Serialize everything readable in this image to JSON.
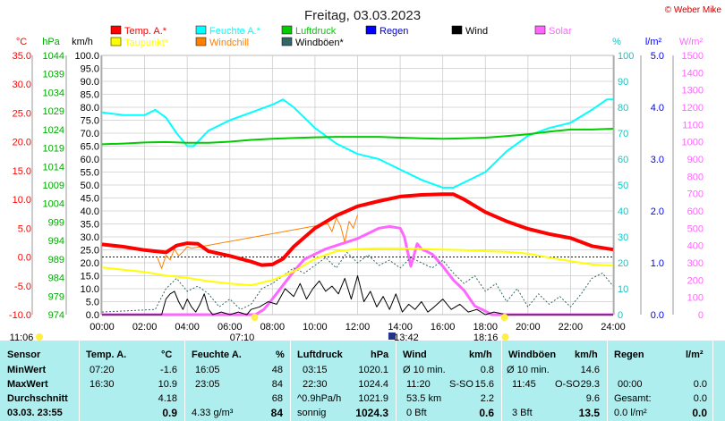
{
  "copyright": "© Weber Mike",
  "chart_data": {
    "type": "line",
    "title": "Freitag, 03.03.2023",
    "units": {
      "temp": "°C",
      "pressure": "hPa",
      "wind": "km/h",
      "humidity": "%",
      "rain": "l/m²",
      "solar": "W/m²"
    },
    "legend": [
      {
        "name": "Temp. A.*",
        "color": "#ff0000"
      },
      {
        "name": "Feuchte A.*",
        "color": "#00ffff"
      },
      {
        "name": "Luftdruck",
        "color": "#00cc00"
      },
      {
        "name": "Regen",
        "color": "#0000ff"
      },
      {
        "name": "Wind",
        "color": "#000000"
      },
      {
        "name": "Solar",
        "color": "#ff66ff"
      },
      {
        "name": "Taupunkt*",
        "color": "#ffff00"
      },
      {
        "name": "Windchill",
        "color": "#ff8000"
      },
      {
        "name": "Windböen*",
        "color": "#336666"
      }
    ],
    "axes": {
      "temp": {
        "ticks": [
          "35.0",
          "30.0",
          "25.0",
          "20.0",
          "15.0",
          "10.0",
          "5.0",
          "0.0",
          "-5.0",
          "-10.0"
        ],
        "range": [
          -10,
          35
        ],
        "color": "#ff0000"
      },
      "pressure": {
        "ticks": [
          "1044",
          "1039",
          "1034",
          "1029",
          "1024",
          "1019",
          "1014",
          "1009",
          "1004",
          "999",
          "994",
          "989",
          "984",
          "979",
          "974"
        ],
        "range": [
          974,
          1044
        ],
        "color": "#00aa00"
      },
      "wind": {
        "ticks": [
          "100.0",
          "95.0",
          "90.0",
          "85.0",
          "80.0",
          "75.0",
          "70.0",
          "65.0",
          "60.0",
          "55.0",
          "50.0",
          "45.0",
          "40.0",
          "35.0",
          "30.0",
          "25.0",
          "20.0",
          "15.0",
          "10.0",
          "5.0",
          "0.0"
        ],
        "range": [
          0,
          100
        ]
      },
      "humidity": {
        "ticks": [
          "100",
          "90",
          "80",
          "70",
          "60",
          "50",
          "40",
          "30",
          "20",
          "10",
          "0"
        ],
        "range": [
          0,
          100
        ],
        "color": "#00cccc"
      },
      "rain": {
        "ticks": [
          "5.0",
          "4.0",
          "3.0",
          "2.0",
          "1.0",
          "0.0"
        ],
        "range": [
          0,
          5
        ],
        "color": "#0000ff"
      },
      "solar": {
        "ticks": [
          "1500",
          "1400",
          "1300",
          "1200",
          "1100",
          "1000",
          "900",
          "800",
          "700",
          "600",
          "500",
          "400",
          "300",
          "200",
          "100",
          "0"
        ],
        "range": [
          0,
          1500
        ],
        "color": "#ff66ff"
      },
      "x": {
        "ticks": [
          "00:00",
          "02:00",
          "04:00",
          "06:00",
          "08:00",
          "10:00",
          "12:00",
          "14:00",
          "16:00",
          "18:00",
          "20:00",
          "22:00",
          "24:00"
        ],
        "range": [
          0,
          24
        ]
      }
    },
    "markers": {
      "moonrise": "11:06",
      "sunrise": "07:10",
      "moon": "13:42",
      "sunset": "18:16"
    },
    "series": [
      {
        "name": "Temp. A.*",
        "axis": "temp",
        "x": [
          0,
          1,
          2,
          3,
          3.5,
          4,
          4.5,
          5,
          6,
          7,
          7.5,
          8,
          8.5,
          9,
          10,
          11,
          12,
          13,
          14,
          15,
          16,
          16.5,
          17,
          18,
          19,
          20,
          21,
          22,
          23,
          24
        ],
        "values": [
          2.2,
          1.8,
          1.2,
          0.8,
          2.0,
          2.4,
          2.3,
          1.0,
          0.2,
          -0.8,
          -1.4,
          -1.3,
          -0.3,
          1.8,
          5.0,
          7.2,
          8.8,
          9.7,
          10.5,
          10.8,
          10.9,
          10.9,
          10.0,
          7.8,
          6.2,
          4.9,
          4.0,
          3.3,
          1.9,
          1.3
        ]
      },
      {
        "name": "Feuchte A.*",
        "axis": "humidity",
        "x": [
          0,
          1,
          2,
          2.5,
          3,
          3.5,
          4,
          4.3,
          5,
          6,
          7,
          8,
          8.5,
          9,
          10,
          11,
          12,
          13,
          14,
          15,
          16,
          16.5,
          17,
          18,
          19,
          20,
          21,
          22,
          23,
          23.7,
          24
        ],
        "values": [
          78,
          77,
          77,
          79,
          76,
          70,
          65,
          65,
          71,
          75,
          78,
          81,
          83,
          80,
          72,
          66,
          62,
          60,
          56,
          52,
          49,
          49,
          51,
          55,
          63,
          69,
          72,
          74,
          79,
          83,
          83
        ]
      },
      {
        "name": "Luftdruck",
        "axis": "pressure",
        "x": [
          0,
          1,
          2,
          3,
          4,
          5,
          6,
          7,
          8,
          9,
          10,
          11,
          12,
          13,
          14,
          15,
          16,
          17,
          18,
          19,
          20,
          21,
          22,
          23,
          24
        ],
        "values": [
          1020.0,
          1020.2,
          1020.5,
          1020.6,
          1020.4,
          1020.4,
          1020.7,
          1021.2,
          1021.5,
          1021.7,
          1021.9,
          1022.0,
          1022.0,
          1022.0,
          1021.8,
          1021.6,
          1021.5,
          1021.6,
          1021.8,
          1022.2,
          1022.7,
          1023.4,
          1024.0,
          1024.0,
          1024.2
        ]
      },
      {
        "name": "Taupunkt*",
        "axis": "temp",
        "x": [
          0,
          1,
          2,
          3,
          4,
          5,
          6,
          7,
          8,
          9,
          10,
          11,
          12,
          13,
          14,
          15,
          16,
          17,
          18,
          19,
          20,
          21,
          22,
          23,
          24
        ],
        "values": [
          -1.8,
          -2.2,
          -2.6,
          -3.2,
          -3.6,
          -4.2,
          -4.6,
          -4.9,
          -4.0,
          -2.5,
          -0.3,
          1.0,
          1.4,
          1.5,
          1.5,
          1.4,
          1.3,
          1.2,
          1.0,
          0.9,
          0.6,
          -0.1,
          -0.7,
          -1.3,
          -1.5
        ]
      },
      {
        "name": "Windchill",
        "axis": "temp",
        "x": [
          2.6,
          2.8,
          3.0,
          3.2,
          3.4,
          3.6,
          3.8,
          4.0,
          4.2,
          10.6,
          10.8,
          11.0,
          11.2,
          11.4,
          11.6,
          11.8,
          12.0
        ],
        "values": [
          -0.1,
          -2.0,
          0.3,
          -0.5,
          1.4,
          0.2,
          0.9,
          1.8,
          1.5,
          5.8,
          4.4,
          6.8,
          5.4,
          2.6,
          6.2,
          5.0,
          7.3
        ]
      },
      {
        "name": "Solar",
        "axis": "solar",
        "x": [
          0,
          7.2,
          7.6,
          8,
          8.5,
          9,
          9.5,
          10,
          10.5,
          11,
          11.5,
          12,
          12.5,
          13,
          13.5,
          14,
          14.2,
          14.5,
          14.8,
          15,
          15.5,
          16,
          16.5,
          17,
          17.5,
          18,
          18.3,
          24
        ],
        "values": [
          0,
          0,
          30,
          90,
          170,
          250,
          320,
          350,
          380,
          400,
          420,
          440,
          470,
          500,
          510,
          500,
          450,
          280,
          410,
          380,
          350,
          280,
          200,
          140,
          50,
          20,
          0,
          0
        ]
      },
      {
        "name": "Wind",
        "axis": "wind",
        "x": [
          0,
          2.8,
          3.0,
          3.2,
          3.4,
          3.6,
          3.8,
          4.0,
          4.2,
          4.4,
          4.6,
          4.8,
          5.0,
          5.2,
          5.6,
          6.0,
          6.4,
          6.8,
          7.0,
          7.4,
          7.8,
          8.2,
          8.6,
          9.0,
          9.3,
          9.6,
          9.9,
          10.2,
          10.5,
          10.8,
          11.1,
          11.4,
          11.7,
          12.0,
          12.3,
          12.6,
          12.9,
          13.2,
          13.5,
          13.8,
          14.1,
          14.4,
          14.7,
          15.0,
          15.3,
          15.6,
          16.0,
          16.4,
          16.8,
          17.2,
          17.6,
          18.0,
          18.4,
          19.0,
          20,
          21,
          22,
          23,
          24
        ],
        "values": [
          0,
          0,
          6,
          8,
          9,
          5,
          2,
          6,
          3,
          1,
          4,
          8,
          2,
          0,
          1,
          0,
          1,
          0,
          2,
          3,
          5,
          4,
          10,
          7,
          12,
          6,
          10,
          13,
          9,
          11,
          8,
          14,
          6,
          15,
          5,
          9,
          3,
          7,
          2,
          8,
          1,
          4,
          2,
          5,
          1,
          3,
          6,
          2,
          4,
          1,
          2,
          0,
          1,
          0,
          0,
          0,
          0,
          0,
          0
        ]
      },
      {
        "name": "Windböen*",
        "axis": "wind",
        "x": [
          0,
          2.5,
          3.0,
          3.5,
          4.0,
          4.5,
          5.0,
          5.5,
          6.0,
          6.5,
          7.0,
          7.5,
          8.0,
          8.5,
          9.0,
          9.5,
          10.0,
          10.5,
          11.0,
          11.5,
          12.0,
          12.5,
          13.0,
          13.5,
          14.0,
          14.5,
          15.0,
          15.5,
          16.0,
          16.5,
          17.0,
          17.5,
          18.0,
          18.5,
          19.0,
          19.5,
          20.0,
          20.5,
          21.0,
          21.5,
          22.0,
          22.5,
          23.0,
          23.5,
          24
        ],
        "values": [
          1,
          2,
          10,
          14,
          9,
          11,
          8,
          3,
          6,
          2,
          4,
          10,
          12,
          15,
          18,
          16,
          19,
          22,
          18,
          24,
          20,
          23,
          19,
          21,
          18,
          22,
          20,
          18,
          21,
          16,
          12,
          15,
          9,
          12,
          5,
          10,
          3,
          8,
          4,
          7,
          3,
          8,
          14,
          16,
          11
        ]
      }
    ]
  },
  "table": {
    "headers": [
      "Sensor",
      "Temp. A.",
      "°C",
      "Feuchte A.",
      "%",
      "Luftdruck",
      "hPa",
      "Wind",
      "km/h",
      "Windböen",
      "km/h",
      "Regen",
      "l/m²"
    ],
    "rows": [
      {
        "label": "MinWert",
        "temp_time": "07:20",
        "temp": "-1.6",
        "hum_time": "16:05",
        "hum": "48",
        "press_time": "03:15",
        "press": "1020.1",
        "wind_label": "Ø 10 min.",
        "wind": "0.8",
        "gust_label": "Ø 10 min.",
        "gust": "14.6",
        "rain_label": "",
        "rain": ""
      },
      {
        "label": "MaxWert",
        "temp_time": "16:30",
        "temp": "10.9",
        "hum_time": "23:05",
        "hum": "84",
        "press_time": "22:30",
        "press": "1024.4",
        "wind_label": "11:20",
        "wind_dir": "S-SO",
        "wind": "15.6",
        "gust_label": "11:45",
        "gust_dir": "O-SO",
        "gust": "29.3",
        "rain_label": "00:00",
        "rain": "0.0"
      },
      {
        "label": "Durchschnitt",
        "temp_time": "",
        "temp": "4.18",
        "hum_time": "",
        "hum": "68",
        "press_time": "^0.9hPa/h",
        "press": "1021.9",
        "wind_label": "53.5 km",
        "wind": "2.2",
        "gust_label": "",
        "gust": "9.6",
        "rain_label": "Gesamt:",
        "rain": "0.0"
      },
      {
        "label": "03.03. 23:55",
        "temp_time": "",
        "temp": "0.9",
        "hum_time": "4.33 g/m³",
        "hum": "84",
        "press_time": "sonnig",
        "press": "1024.3",
        "wind_label": "0 Bft",
        "wind": "0.6",
        "gust_label": "3 Bft",
        "gust": "13.5",
        "rain_label": "0.0 l/m²",
        "rain": "0.0"
      }
    ]
  }
}
